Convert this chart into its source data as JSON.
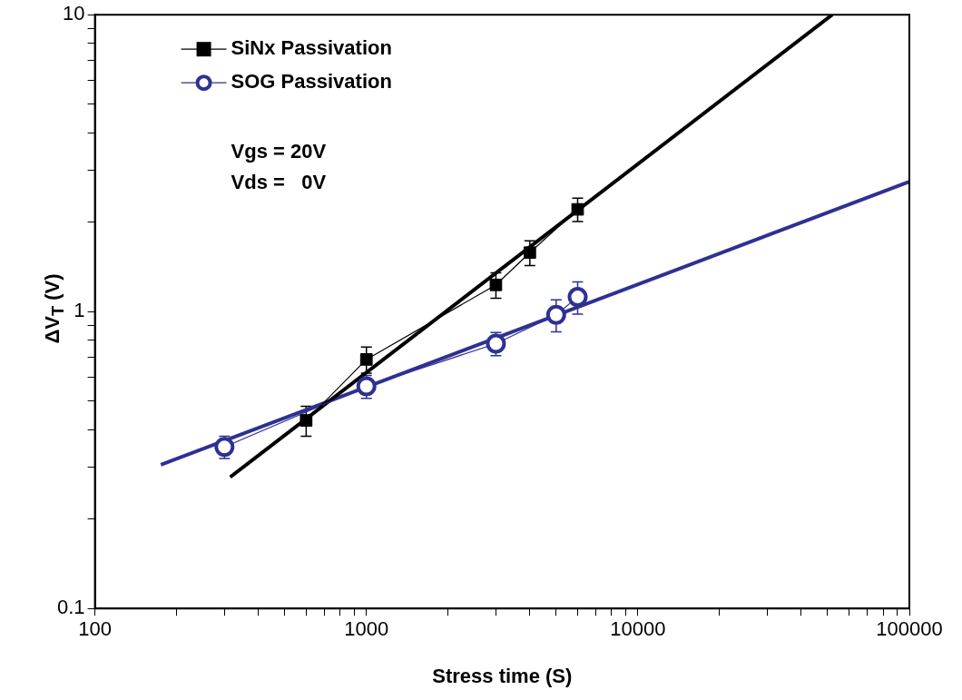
{
  "chart_data": {
    "type": "line",
    "xlabel": "Stress time (S)",
    "ylabel": "ΔV$_{T}$ (V)",
    "log": "xy",
    "xlim": [
      100,
      100000
    ],
    "ylim": [
      0.1,
      10
    ],
    "xticks": [
      100,
      {
        "value": 200,
        "label": null
      },
      {
        "value": 300,
        "label": null
      },
      {
        "value": 400,
        "label": null
      },
      {
        "value": 500,
        "label": null
      },
      {
        "value": 600,
        "label": null
      },
      {
        "value": 700,
        "label": null
      },
      {
        "value": 800,
        "label": null
      },
      {
        "value": 900,
        "label": null
      },
      1000,
      {
        "value": 2000,
        "label": null
      },
      {
        "value": 3000,
        "label": null
      },
      {
        "value": 4000,
        "label": null
      },
      {
        "value": 5000,
        "label": null
      },
      {
        "value": 6000,
        "label": null
      },
      {
        "value": 7000,
        "label": null
      },
      {
        "value": 8000,
        "label": null
      },
      {
        "value": 9000,
        "label": null
      },
      10000,
      {
        "value": 20000,
        "label": null
      },
      {
        "value": 30000,
        "label": null
      },
      {
        "value": 40000,
        "label": null
      },
      {
        "value": 50000,
        "label": null
      },
      {
        "value": 60000,
        "label": null
      },
      {
        "value": 70000,
        "label": null
      },
      {
        "value": 80000,
        "label": null
      },
      {
        "value": 90000,
        "label": null
      },
      100000
    ],
    "yticks": [
      0.1,
      {
        "value": 0.2,
        "label": null
      },
      {
        "value": 0.3,
        "label": null
      },
      {
        "value": 0.4,
        "label": null
      },
      {
        "value": 0.5,
        "label": null
      },
      {
        "value": 0.6,
        "label": null
      },
      {
        "value": 0.7,
        "label": null
      },
      {
        "value": 0.8,
        "label": null
      },
      {
        "value": 0.9,
        "label": null
      },
      1,
      {
        "value": 2,
        "label": null
      },
      {
        "value": 3,
        "label": null
      },
      {
        "value": 4,
        "label": null
      },
      {
        "value": 5,
        "label": null
      },
      {
        "value": 6,
        "label": null
      },
      {
        "value": 7,
        "label": null
      },
      {
        "value": 8,
        "label": null
      },
      {
        "value": 9,
        "label": null
      },
      10
    ],
    "grid": false,
    "legend": "top left",
    "annotations": [
      "Vgs = 20V",
      "Vds =   0V"
    ],
    "series": [
      {
        "name": "SiNx Passivation",
        "marker": "square",
        "color": "#000000",
        "x": [
          600,
          1000,
          3000,
          4000,
          6000
        ],
        "values": [
          0.43,
          0.69,
          1.23,
          1.58,
          2.21
        ],
        "errors": [
          0.05,
          0.07,
          0.12,
          0.15,
          0.2
        ]
      },
      {
        "name": "SOG Passivation",
        "marker": "circle",
        "color": "#2e3192",
        "x": [
          300,
          1000,
          3000,
          5000,
          6000
        ],
        "values": [
          0.35,
          0.56,
          0.78,
          0.975,
          1.12
        ],
        "errors": [
          0.03,
          0.05,
          0.07,
          0.12,
          0.14
        ]
      },
      {
        "marker": "none",
        "color": "#000000",
        "x": [
          315,
          52000
        ],
        "values": [
          0.277,
          10
        ]
      },
      {
        "marker": "none",
        "color": "#2e3192",
        "x": [
          175,
          100000
        ],
        "values": [
          0.305,
          2.74
        ]
      }
    ]
  }
}
